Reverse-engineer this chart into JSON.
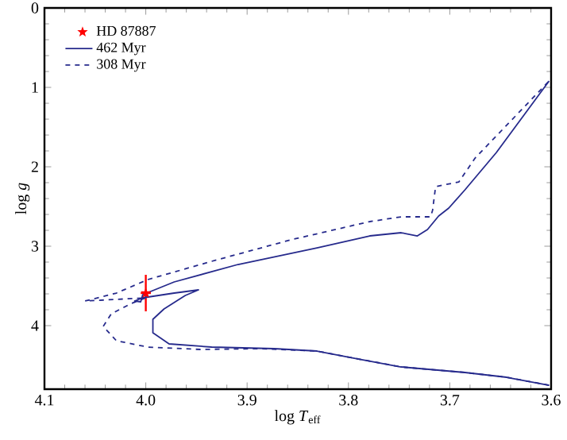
{
  "chart_data": {
    "type": "line",
    "xlabel": "log *T*$_{eff}$",
    "ylabel": "log *g*",
    "xlim": [
      4.1,
      3.6
    ],
    "ylim": [
      4.8,
      0
    ],
    "xticks": [
      4.1,
      {
        "value": 4.0,
        "label": "4.0"
      },
      3.9,
      3.8,
      3.7,
      3.6
    ],
    "yticks": [
      0,
      1,
      2,
      3,
      4
    ],
    "legend": "top left",
    "grid": false,
    "series": [
      {
        "name": "HD 87887",
        "type": "scatter",
        "marker": "star",
        "color": "#ff0000",
        "x": [
          4.0
        ],
        "values": [
          3.59
        ],
        "errors": [
          0.23
        ],
        "xerrors": [
          0.005
        ]
      },
      {
        "name": "462 Myr",
        "line_style": "solid",
        "marker": "none",
        "color": "#262a8c",
        "x": [
          3.602,
          3.644,
          3.685,
          3.748,
          3.79,
          3.831,
          3.873,
          3.935,
          3.977,
          3.993,
          3.993,
          3.982,
          3.961,
          3.948,
          3.972,
          4.003,
          4.011,
          4.005,
          4.003,
          3.972,
          3.909,
          3.831,
          3.779,
          3.748,
          3.732,
          3.722,
          3.711,
          3.701,
          3.685,
          3.654,
          3.602
        ],
        "values": [
          4.75,
          4.65,
          4.59,
          4.52,
          4.42,
          4.32,
          4.29,
          4.27,
          4.23,
          4.09,
          3.92,
          3.79,
          3.62,
          3.55,
          3.59,
          3.65,
          3.69,
          3.7,
          3.61,
          3.45,
          3.23,
          3.02,
          2.87,
          2.83,
          2.87,
          2.79,
          2.62,
          2.52,
          2.29,
          1.82,
          0.92
        ]
      },
      {
        "name": "308 Myr",
        "line_style": "dashed",
        "marker": "none",
        "color": "#262a8c",
        "x": [
          3.602,
          3.644,
          3.685,
          3.748,
          3.79,
          3.831,
          3.889,
          3.946,
          3.998,
          4.029,
          4.042,
          4.034,
          4.014,
          4.0,
          4.03,
          4.06,
          4.029,
          3.998,
          3.935,
          3.857,
          3.779,
          3.748,
          3.719,
          3.717,
          3.714,
          3.691,
          3.675,
          3.602
        ],
        "values": [
          4.75,
          4.65,
          4.59,
          4.52,
          4.42,
          4.32,
          4.29,
          4.3,
          4.27,
          4.19,
          4.01,
          3.85,
          3.72,
          3.65,
          3.67,
          3.69,
          3.59,
          3.42,
          3.19,
          2.92,
          2.69,
          2.63,
          2.63,
          2.55,
          2.25,
          2.19,
          1.89,
          0.92
        ]
      }
    ]
  }
}
